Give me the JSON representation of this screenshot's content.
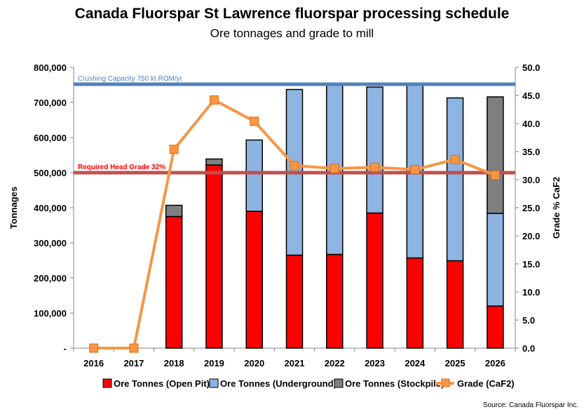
{
  "header": {
    "title": "Canada Fluorspar St Lawrence fluorspar processing schedule",
    "subtitle": "Ore tonnages and grade to mill"
  },
  "source": "Source: Canada Fluorspar Inc.",
  "chart_data": {
    "type": "bar",
    "stacked": true,
    "categories": [
      "2016",
      "2017",
      "2018",
      "2019",
      "2020",
      "2021",
      "2022",
      "2023",
      "2024",
      "2025",
      "2026"
    ],
    "series": [
      {
        "name": "Ore Tonnes (Open Pit)",
        "color": "#ff0000",
        "values": [
          0,
          0,
          375000,
          522000,
          390000,
          265000,
          267000,
          385000,
          257000,
          249000,
          120000
        ]
      },
      {
        "name": "Ore Tonnes (Underground)",
        "color": "#8db4e2",
        "values": [
          0,
          0,
          0,
          0,
          203000,
          472000,
          483000,
          359000,
          493000,
          464000,
          264000
        ]
      },
      {
        "name": "Ore Tonnes (Stockpile)",
        "color": "#7f7f7f",
        "values": [
          0,
          0,
          32000,
          17000,
          0,
          0,
          0,
          0,
          0,
          0,
          332000
        ]
      }
    ],
    "line_series": {
      "name": "Grade (CaF2)",
      "color": "#f79646",
      "axis": "right",
      "values": [
        0.0,
        0.0,
        35.4,
        44.2,
        40.4,
        32.5,
        32.0,
        32.2,
        31.8,
        33.6,
        30.8
      ]
    },
    "ylabel": "Tonnages",
    "ylabel_right": "Grade % CaF2",
    "ylim": [
      0,
      800000
    ],
    "ylim_right": [
      0,
      50
    ],
    "y_ticks": [
      "-",
      "100,000",
      "200,000",
      "300,000",
      "400,000",
      "500,000",
      "600,000",
      "700,000",
      "800,000"
    ],
    "y_ticks_right": [
      "0.0",
      "5.0",
      "10.0",
      "15.0",
      "20.0",
      "25.0",
      "30.0",
      "35.0",
      "40.0",
      "45.0",
      "50.0"
    ],
    "reference_lines": [
      {
        "label": "Crushing Capacity 750 kt ROM/yr",
        "value": 752000,
        "color": "#4f81bd",
        "label_color": "#4f81bd"
      },
      {
        "label": "Required Head Grade 32%",
        "value": 500000,
        "color": "#c0504d",
        "label_color": "#ff0000"
      }
    ],
    "legend": "bottom",
    "grid": false
  }
}
